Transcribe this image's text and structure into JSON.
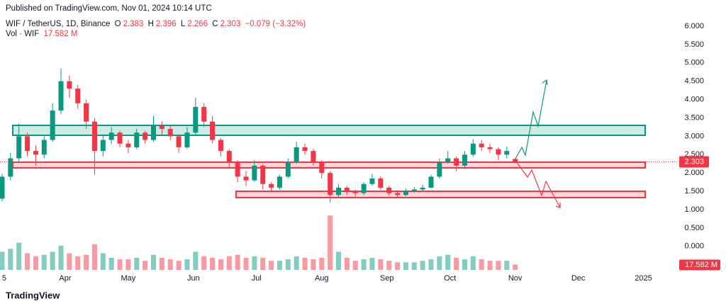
{
  "header": {
    "published": "Published on TradingView.com, Nov 01, 2024 10:14 UTC",
    "symbol": "WIF / TetherUS, 1D, Binance",
    "open": {
      "key": "O",
      "value": "2.383"
    },
    "high": {
      "key": "H",
      "value": "2.396"
    },
    "low": {
      "key": "L",
      "value": "2.266"
    },
    "close": {
      "key": "C",
      "value": "2.303"
    },
    "change": "−0.079 (−3.32%)",
    "volume_name": "Vol · WIF",
    "volume": "17.582 M"
  },
  "chart_data": {
    "type": "candlestick",
    "x": [
      "2024-03-02",
      "2024-03-06",
      "2024-03-10",
      "2024-03-14",
      "2024-03-18",
      "2024-03-22",
      "2024-03-26",
      "2024-03-30",
      "2024-04-03",
      "2024-04-07",
      "2024-04-11",
      "2024-04-15",
      "2024-04-19",
      "2024-04-23",
      "2024-04-27",
      "2024-05-01",
      "2024-05-05",
      "2024-05-09",
      "2024-05-13",
      "2024-05-17",
      "2024-05-21",
      "2024-05-25",
      "2024-05-29",
      "2024-06-02",
      "2024-06-06",
      "2024-06-10",
      "2024-06-14",
      "2024-06-18",
      "2024-06-22",
      "2024-06-26",
      "2024-06-30",
      "2024-07-04",
      "2024-07-08",
      "2024-07-12",
      "2024-07-16",
      "2024-07-20",
      "2024-07-24",
      "2024-07-28",
      "2024-08-01",
      "2024-08-05",
      "2024-08-09",
      "2024-08-13",
      "2024-08-17",
      "2024-08-21",
      "2024-08-25",
      "2024-08-29",
      "2024-09-02",
      "2024-09-06",
      "2024-09-10",
      "2024-09-14",
      "2024-09-18",
      "2024-09-22",
      "2024-09-26",
      "2024-09-30",
      "2024-10-04",
      "2024-10-08",
      "2024-10-12",
      "2024-10-16",
      "2024-10-20",
      "2024-10-24",
      "2024-10-28",
      "2024-11-01"
    ],
    "open": [
      1.3,
      1.9,
      2.4,
      3.0,
      2.6,
      2.5,
      2.9,
      3.7,
      4.5,
      4.3,
      3.9,
      3.4,
      2.6,
      2.9,
      3.1,
      2.8,
      2.7,
      3.1,
      2.9,
      3.3,
      3.2,
      3.0,
      2.7,
      3.1,
      3.8,
      3.4,
      2.9,
      2.6,
      2.3,
      1.9,
      1.8,
      2.2,
      1.7,
      1.6,
      1.9,
      2.3,
      2.7,
      2.6,
      2.3,
      2.0,
      1.4,
      1.6,
      1.5,
      1.45,
      1.7,
      1.85,
      1.6,
      1.45,
      1.4,
      1.5,
      1.55,
      1.6,
      1.9,
      2.3,
      2.4,
      2.2,
      2.5,
      2.8,
      2.7,
      2.65,
      2.5,
      2.383
    ],
    "high": [
      1.98,
      2.55,
      3.35,
      3.1,
      2.75,
      3.0,
      3.9,
      4.85,
      4.65,
      4.4,
      4.0,
      3.5,
      3.05,
      3.25,
      3.15,
      2.9,
      3.2,
      3.15,
      3.55,
      3.4,
      3.3,
      3.05,
      3.25,
      4.05,
      3.9,
      3.55,
      2.95,
      2.65,
      2.35,
      2.05,
      2.35,
      2.25,
      1.75,
      1.95,
      2.4,
      2.85,
      2.8,
      2.65,
      2.35,
      2.05,
      1.7,
      1.65,
      1.55,
      1.75,
      1.98,
      1.9,
      1.65,
      1.52,
      1.58,
      1.62,
      1.68,
      1.95,
      2.4,
      2.6,
      2.45,
      2.6,
      2.92,
      2.9,
      2.8,
      2.7,
      2.72,
      2.396
    ],
    "low": [
      1.22,
      1.8,
      2.3,
      2.45,
      2.2,
      2.4,
      2.85,
      3.6,
      4.05,
      3.75,
      3.2,
      1.95,
      2.45,
      2.8,
      2.7,
      2.55,
      2.65,
      2.8,
      2.85,
      3.05,
      2.9,
      2.55,
      2.65,
      3.05,
      3.25,
      2.8,
      2.45,
      2.15,
      1.75,
      1.65,
      1.75,
      1.55,
      1.5,
      1.55,
      1.85,
      2.25,
      2.5,
      2.2,
      1.85,
      1.2,
      1.35,
      1.4,
      1.35,
      1.4,
      1.65,
      1.55,
      1.38,
      1.35,
      1.36,
      1.45,
      1.5,
      1.58,
      1.85,
      2.25,
      2.05,
      2.15,
      2.45,
      2.6,
      2.55,
      2.35,
      2.4,
      2.266
    ],
    "close": [
      1.9,
      2.4,
      3.0,
      2.6,
      2.5,
      2.9,
      3.7,
      4.5,
      4.3,
      3.9,
      3.4,
      2.6,
      2.9,
      3.1,
      2.8,
      2.7,
      3.1,
      2.9,
      3.3,
      3.2,
      3.0,
      2.7,
      3.1,
      3.8,
      3.4,
      2.9,
      2.6,
      2.3,
      1.9,
      1.8,
      2.2,
      1.7,
      1.6,
      1.9,
      2.3,
      2.7,
      2.6,
      2.3,
      2.0,
      1.4,
      1.6,
      1.5,
      1.45,
      1.7,
      1.85,
      1.6,
      1.45,
      1.4,
      1.5,
      1.55,
      1.6,
      1.9,
      2.3,
      2.4,
      2.2,
      2.5,
      2.8,
      2.7,
      2.65,
      2.5,
      2.6,
      2.303
    ],
    "volume": [
      60,
      70,
      90,
      55,
      45,
      50,
      60,
      80,
      55,
      45,
      50,
      85,
      55,
      40,
      35,
      35,
      40,
      30,
      50,
      40,
      35,
      30,
      35,
      60,
      45,
      40,
      35,
      45,
      50,
      40,
      45,
      40,
      30,
      30,
      35,
      45,
      40,
      35,
      40,
      180,
      60,
      40,
      30,
      35,
      40,
      35,
      30,
      25,
      25,
      25,
      30,
      35,
      45,
      50,
      40,
      35,
      45,
      35,
      30,
      30,
      30,
      17.582
    ],
    "ylim": [
      -0.64,
      6.25
    ],
    "yticks": [
      {
        "value": 0,
        "label": "0.000"
      },
      {
        "value": 0.5,
        "label": "0.500"
      },
      {
        "value": 1,
        "label": "1.000"
      },
      {
        "value": 1.5,
        "label": "1.500"
      },
      {
        "value": 2,
        "label": "2.000"
      },
      {
        "value": 2.5,
        "label": "2.500"
      },
      {
        "value": 3,
        "label": "3.000"
      },
      {
        "value": 3.5,
        "label": "3.500"
      },
      {
        "value": 4,
        "label": "4.000"
      },
      {
        "value": 4.5,
        "label": "4.500"
      },
      {
        "value": 5,
        "label": "5.000"
      },
      {
        "value": 5.5,
        "label": "5.500"
      },
      {
        "value": 6,
        "label": "6.000"
      }
    ],
    "xlim": [
      "2024-03-01",
      "2025-01-17"
    ],
    "xticks": [
      {
        "value": "2024-03-03",
        "label": "5"
      },
      {
        "value": "2024-04-01",
        "label": "Apr"
      },
      {
        "value": "2024-05-01",
        "label": "May"
      },
      {
        "value": "2024-06-01",
        "label": "Jun"
      },
      {
        "value": "2024-07-01",
        "label": "Jul"
      },
      {
        "value": "2024-08-01",
        "label": "Aug"
      },
      {
        "value": "2024-09-01",
        "label": "Sep"
      },
      {
        "value": "2024-10-01",
        "label": "Oct"
      },
      {
        "value": "2024-11-01",
        "label": "Nov"
      },
      {
        "value": "2024-12-01",
        "label": "Dec"
      },
      {
        "value": "2025-01-01",
        "label": "2025"
      }
    ],
    "volume_lim": [
      0,
      190
    ],
    "up_color": "#089981",
    "down_color": "#f23645",
    "grid": false
  },
  "footer": {
    "brand": "TradingView"
  }
}
